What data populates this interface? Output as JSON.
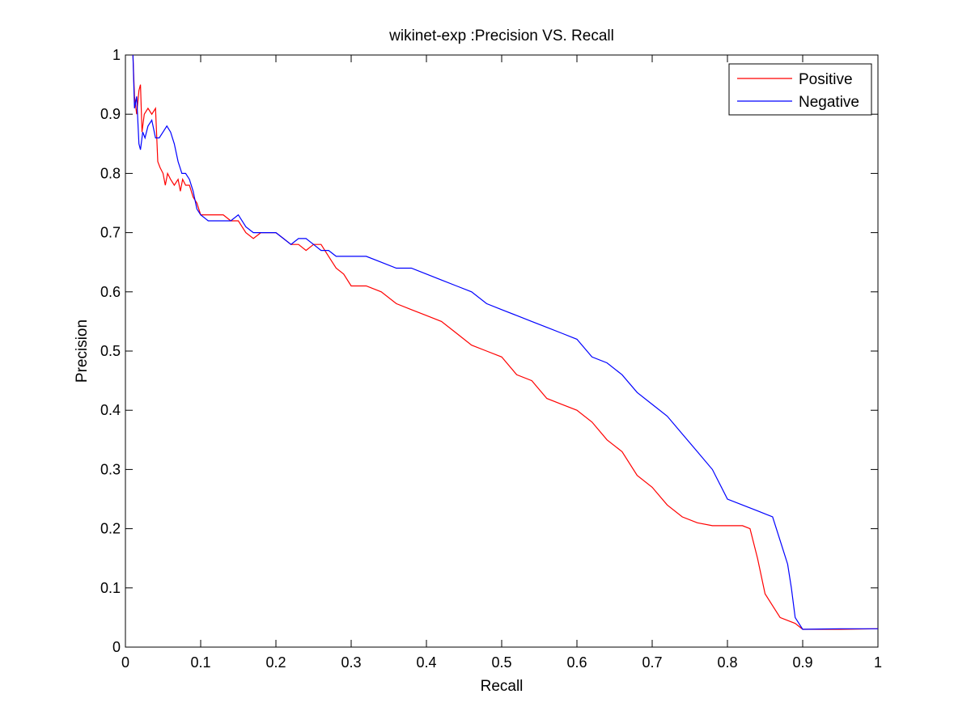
{
  "chart_data": {
    "type": "line",
    "title": "wikinet-exp :Precision VS. Recall",
    "xlabel": "Recall",
    "ylabel": "Precision",
    "xlim": [
      0,
      1
    ],
    "ylim": [
      0,
      1
    ],
    "xticks": [
      "0",
      "0.1",
      "0.2",
      "0.3",
      "0.4",
      "0.5",
      "0.6",
      "0.7",
      "0.8",
      "0.9",
      "1"
    ],
    "yticks": [
      "0",
      "0.1",
      "0.2",
      "0.3",
      "0.4",
      "0.5",
      "0.6",
      "0.7",
      "0.8",
      "0.9",
      "1"
    ],
    "grid": false,
    "legend_position": "top-right",
    "series": [
      {
        "name": "Positive",
        "color": "#ff0000",
        "points": [
          [
            0.01,
            1.0
          ],
          [
            0.012,
            0.93
          ],
          [
            0.015,
            0.9
          ],
          [
            0.018,
            0.94
          ],
          [
            0.02,
            0.95
          ],
          [
            0.022,
            0.87
          ],
          [
            0.025,
            0.9
          ],
          [
            0.03,
            0.91
          ],
          [
            0.035,
            0.9
          ],
          [
            0.04,
            0.91
          ],
          [
            0.043,
            0.82
          ],
          [
            0.046,
            0.81
          ],
          [
            0.05,
            0.8
          ],
          [
            0.053,
            0.78
          ],
          [
            0.056,
            0.8
          ],
          [
            0.06,
            0.79
          ],
          [
            0.065,
            0.78
          ],
          [
            0.07,
            0.79
          ],
          [
            0.073,
            0.77
          ],
          [
            0.076,
            0.79
          ],
          [
            0.08,
            0.78
          ],
          [
            0.085,
            0.78
          ],
          [
            0.09,
            0.76
          ],
          [
            0.095,
            0.75
          ],
          [
            0.1,
            0.73
          ],
          [
            0.11,
            0.73
          ],
          [
            0.12,
            0.73
          ],
          [
            0.13,
            0.73
          ],
          [
            0.14,
            0.72
          ],
          [
            0.15,
            0.72
          ],
          [
            0.16,
            0.7
          ],
          [
            0.17,
            0.69
          ],
          [
            0.18,
            0.7
          ],
          [
            0.19,
            0.7
          ],
          [
            0.2,
            0.7
          ],
          [
            0.21,
            0.69
          ],
          [
            0.22,
            0.68
          ],
          [
            0.23,
            0.68
          ],
          [
            0.24,
            0.67
          ],
          [
            0.25,
            0.68
          ],
          [
            0.26,
            0.68
          ],
          [
            0.27,
            0.66
          ],
          [
            0.28,
            0.64
          ],
          [
            0.29,
            0.63
          ],
          [
            0.3,
            0.61
          ],
          [
            0.32,
            0.61
          ],
          [
            0.34,
            0.6
          ],
          [
            0.36,
            0.58
          ],
          [
            0.38,
            0.57
          ],
          [
            0.4,
            0.56
          ],
          [
            0.42,
            0.55
          ],
          [
            0.44,
            0.53
          ],
          [
            0.46,
            0.51
          ],
          [
            0.48,
            0.5
          ],
          [
            0.5,
            0.49
          ],
          [
            0.52,
            0.46
          ],
          [
            0.54,
            0.45
          ],
          [
            0.56,
            0.42
          ],
          [
            0.58,
            0.41
          ],
          [
            0.6,
            0.4
          ],
          [
            0.62,
            0.38
          ],
          [
            0.64,
            0.35
          ],
          [
            0.66,
            0.33
          ],
          [
            0.68,
            0.29
          ],
          [
            0.7,
            0.27
          ],
          [
            0.72,
            0.24
          ],
          [
            0.74,
            0.22
          ],
          [
            0.76,
            0.21
          ],
          [
            0.78,
            0.205
          ],
          [
            0.8,
            0.205
          ],
          [
            0.82,
            0.205
          ],
          [
            0.83,
            0.2
          ],
          [
            0.84,
            0.15
          ],
          [
            0.85,
            0.09
          ],
          [
            0.86,
            0.07
          ],
          [
            0.87,
            0.05
          ],
          [
            0.88,
            0.045
          ],
          [
            0.89,
            0.04
          ],
          [
            0.9,
            0.03
          ],
          [
            0.95,
            0.03
          ],
          [
            1.0,
            0.031
          ]
        ]
      },
      {
        "name": "Negative",
        "color": "#0000ff",
        "points": [
          [
            0.01,
            1.0
          ],
          [
            0.012,
            0.91
          ],
          [
            0.015,
            0.93
          ],
          [
            0.018,
            0.85
          ],
          [
            0.02,
            0.84
          ],
          [
            0.023,
            0.87
          ],
          [
            0.026,
            0.86
          ],
          [
            0.03,
            0.88
          ],
          [
            0.035,
            0.89
          ],
          [
            0.04,
            0.86
          ],
          [
            0.045,
            0.86
          ],
          [
            0.05,
            0.87
          ],
          [
            0.055,
            0.88
          ],
          [
            0.06,
            0.87
          ],
          [
            0.065,
            0.85
          ],
          [
            0.07,
            0.82
          ],
          [
            0.075,
            0.8
          ],
          [
            0.08,
            0.8
          ],
          [
            0.085,
            0.79
          ],
          [
            0.09,
            0.77
          ],
          [
            0.095,
            0.74
          ],
          [
            0.1,
            0.73
          ],
          [
            0.11,
            0.72
          ],
          [
            0.12,
            0.72
          ],
          [
            0.13,
            0.72
          ],
          [
            0.14,
            0.72
          ],
          [
            0.15,
            0.73
          ],
          [
            0.16,
            0.71
          ],
          [
            0.17,
            0.7
          ],
          [
            0.18,
            0.7
          ],
          [
            0.19,
            0.7
          ],
          [
            0.2,
            0.7
          ],
          [
            0.21,
            0.69
          ],
          [
            0.22,
            0.68
          ],
          [
            0.23,
            0.69
          ],
          [
            0.24,
            0.69
          ],
          [
            0.25,
            0.68
          ],
          [
            0.26,
            0.67
          ],
          [
            0.27,
            0.67
          ],
          [
            0.28,
            0.66
          ],
          [
            0.3,
            0.66
          ],
          [
            0.32,
            0.66
          ],
          [
            0.34,
            0.65
          ],
          [
            0.36,
            0.64
          ],
          [
            0.38,
            0.64
          ],
          [
            0.4,
            0.63
          ],
          [
            0.42,
            0.62
          ],
          [
            0.44,
            0.61
          ],
          [
            0.46,
            0.6
          ],
          [
            0.48,
            0.58
          ],
          [
            0.5,
            0.57
          ],
          [
            0.52,
            0.56
          ],
          [
            0.54,
            0.55
          ],
          [
            0.56,
            0.54
          ],
          [
            0.58,
            0.53
          ],
          [
            0.6,
            0.52
          ],
          [
            0.62,
            0.49
          ],
          [
            0.64,
            0.48
          ],
          [
            0.66,
            0.46
          ],
          [
            0.68,
            0.43
          ],
          [
            0.7,
            0.41
          ],
          [
            0.72,
            0.39
          ],
          [
            0.74,
            0.36
          ],
          [
            0.76,
            0.33
          ],
          [
            0.78,
            0.3
          ],
          [
            0.8,
            0.25
          ],
          [
            0.82,
            0.24
          ],
          [
            0.84,
            0.23
          ],
          [
            0.86,
            0.22
          ],
          [
            0.87,
            0.18
          ],
          [
            0.88,
            0.14
          ],
          [
            0.885,
            0.1
          ],
          [
            0.89,
            0.05
          ],
          [
            0.9,
            0.03
          ],
          [
            0.95,
            0.031
          ],
          [
            1.0,
            0.031
          ]
        ]
      }
    ]
  }
}
